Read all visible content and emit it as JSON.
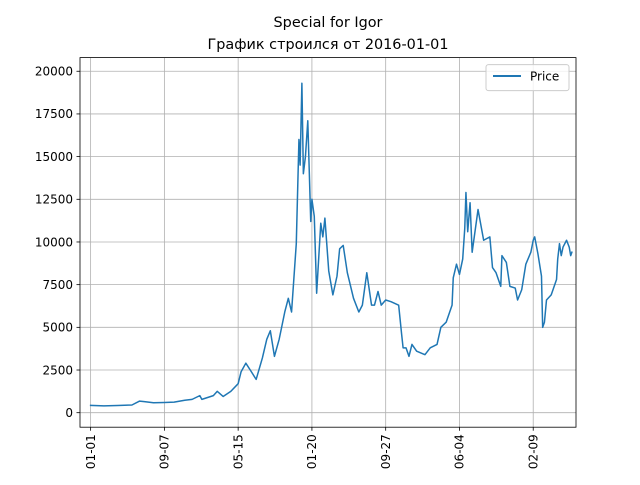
{
  "chart_data": {
    "type": "line",
    "title": "Special for Igor",
    "subtitle": "График строился от 2016-01-01",
    "xlabel": "",
    "ylabel": "",
    "grid": true,
    "legend_placement": "upper right",
    "ylim": [
      -850,
      20800
    ],
    "xlim": [
      "2015-11-26",
      "2020-07-03"
    ],
    "y_ticks": [
      0,
      2500,
      5000,
      7500,
      10000,
      12500,
      15000,
      17500,
      20000
    ],
    "y_tick_labels": [
      "0",
      "2500",
      "5000",
      "7500",
      "10000",
      "12500",
      "15000",
      "17500",
      "20000"
    ],
    "x_ticks": [
      "2016-01-01",
      "2016-09-07",
      "2017-05-15",
      "2018-01-20",
      "2018-09-27",
      "2019-06-04",
      "2020-02-09"
    ],
    "x_tick_labels": [
      "01-01",
      "09-07",
      "05-15",
      "01-20",
      "09-27",
      "06-04",
      "02-09"
    ],
    "series": [
      {
        "name": "Price",
        "color": "#1f77b4",
        "points": [
          [
            "2016-01-01",
            430
          ],
          [
            "2016-02-15",
            400
          ],
          [
            "2016-04-01",
            420
          ],
          [
            "2016-05-20",
            450
          ],
          [
            "2016-06-15",
            680
          ],
          [
            "2016-07-01",
            650
          ],
          [
            "2016-08-01",
            580
          ],
          [
            "2016-09-07",
            600
          ],
          [
            "2016-10-10",
            620
          ],
          [
            "2016-11-15",
            730
          ],
          [
            "2016-12-10",
            780
          ],
          [
            "2017-01-05",
            1000
          ],
          [
            "2017-01-12",
            780
          ],
          [
            "2017-02-20",
            1000
          ],
          [
            "2017-03-05",
            1250
          ],
          [
            "2017-03-25",
            950
          ],
          [
            "2017-04-20",
            1250
          ],
          [
            "2017-05-15",
            1700
          ],
          [
            "2017-05-25",
            2400
          ],
          [
            "2017-06-10",
            2900
          ],
          [
            "2017-06-25",
            2500
          ],
          [
            "2017-07-15",
            1950
          ],
          [
            "2017-08-05",
            3200
          ],
          [
            "2017-08-20",
            4300
          ],
          [
            "2017-09-01",
            4800
          ],
          [
            "2017-09-15",
            3300
          ],
          [
            "2017-10-01",
            4300
          ],
          [
            "2017-10-20",
            5900
          ],
          [
            "2017-11-01",
            6700
          ],
          [
            "2017-11-12",
            5900
          ],
          [
            "2017-11-28",
            9900
          ],
          [
            "2017-12-07",
            16000
          ],
          [
            "2017-12-11",
            14500
          ],
          [
            "2017-12-17",
            19300
          ],
          [
            "2017-12-22",
            14000
          ],
          [
            "2017-12-29",
            15000
          ],
          [
            "2018-01-06",
            17100
          ],
          [
            "2018-01-16",
            11200
          ],
          [
            "2018-01-20",
            12500
          ],
          [
            "2018-01-28",
            11500
          ],
          [
            "2018-02-05",
            7000
          ],
          [
            "2018-02-19",
            11100
          ],
          [
            "2018-02-26",
            10300
          ],
          [
            "2018-03-05",
            11400
          ],
          [
            "2018-03-18",
            8300
          ],
          [
            "2018-04-01",
            6900
          ],
          [
            "2018-04-15",
            8000
          ],
          [
            "2018-04-24",
            9600
          ],
          [
            "2018-05-06",
            9800
          ],
          [
            "2018-05-20",
            8200
          ],
          [
            "2018-06-10",
            6700
          ],
          [
            "2018-06-28",
            5900
          ],
          [
            "2018-07-10",
            6300
          ],
          [
            "2018-07-25",
            8200
          ],
          [
            "2018-08-10",
            6300
          ],
          [
            "2018-08-20",
            6300
          ],
          [
            "2018-09-01",
            7100
          ],
          [
            "2018-09-12",
            6300
          ],
          [
            "2018-09-27",
            6600
          ],
          [
            "2018-10-15",
            6500
          ],
          [
            "2018-11-10",
            6300
          ],
          [
            "2018-11-20",
            4600
          ],
          [
            "2018-11-25",
            3800
          ],
          [
            "2018-12-05",
            3800
          ],
          [
            "2018-12-15",
            3300
          ],
          [
            "2018-12-25",
            4000
          ],
          [
            "2019-01-10",
            3600
          ],
          [
            "2019-02-07",
            3400
          ],
          [
            "2019-02-25",
            3800
          ],
          [
            "2019-03-20",
            4000
          ],
          [
            "2019-04-02",
            5000
          ],
          [
            "2019-04-20",
            5300
          ],
          [
            "2019-05-10",
            6300
          ],
          [
            "2019-05-14",
            7900
          ],
          [
            "2019-05-25",
            8700
          ],
          [
            "2019-06-04",
            8100
          ],
          [
            "2019-06-15",
            9000
          ],
          [
            "2019-06-22",
            10800
          ],
          [
            "2019-06-26",
            12900
          ],
          [
            "2019-07-02",
            10600
          ],
          [
            "2019-07-10",
            12300
          ],
          [
            "2019-07-17",
            9400
          ],
          [
            "2019-08-06",
            11900
          ],
          [
            "2019-08-25",
            10100
          ],
          [
            "2019-09-15",
            10300
          ],
          [
            "2019-09-24",
            8500
          ],
          [
            "2019-10-06",
            8200
          ],
          [
            "2019-10-22",
            7400
          ],
          [
            "2019-10-26",
            9200
          ],
          [
            "2019-11-10",
            8800
          ],
          [
            "2019-11-22",
            7400
          ],
          [
            "2019-12-10",
            7300
          ],
          [
            "2019-12-18",
            6600
          ],
          [
            "2020-01-01",
            7200
          ],
          [
            "2020-01-15",
            8700
          ],
          [
            "2020-02-01",
            9400
          ],
          [
            "2020-02-09",
            10100
          ],
          [
            "2020-02-14",
            10300
          ],
          [
            "2020-02-25",
            9300
          ],
          [
            "2020-03-08",
            8000
          ],
          [
            "2020-03-12",
            5000
          ],
          [
            "2020-03-18",
            5300
          ],
          [
            "2020-03-25",
            6600
          ],
          [
            "2020-04-10",
            6900
          ],
          [
            "2020-04-28",
            7800
          ],
          [
            "2020-05-02",
            9000
          ],
          [
            "2020-05-08",
            9900
          ],
          [
            "2020-05-14",
            9200
          ],
          [
            "2020-05-20",
            9700
          ],
          [
            "2020-06-01",
            10100
          ],
          [
            "2020-06-10",
            9700
          ],
          [
            "2020-06-15",
            9200
          ],
          [
            "2020-06-19",
            9400
          ]
        ]
      }
    ]
  }
}
